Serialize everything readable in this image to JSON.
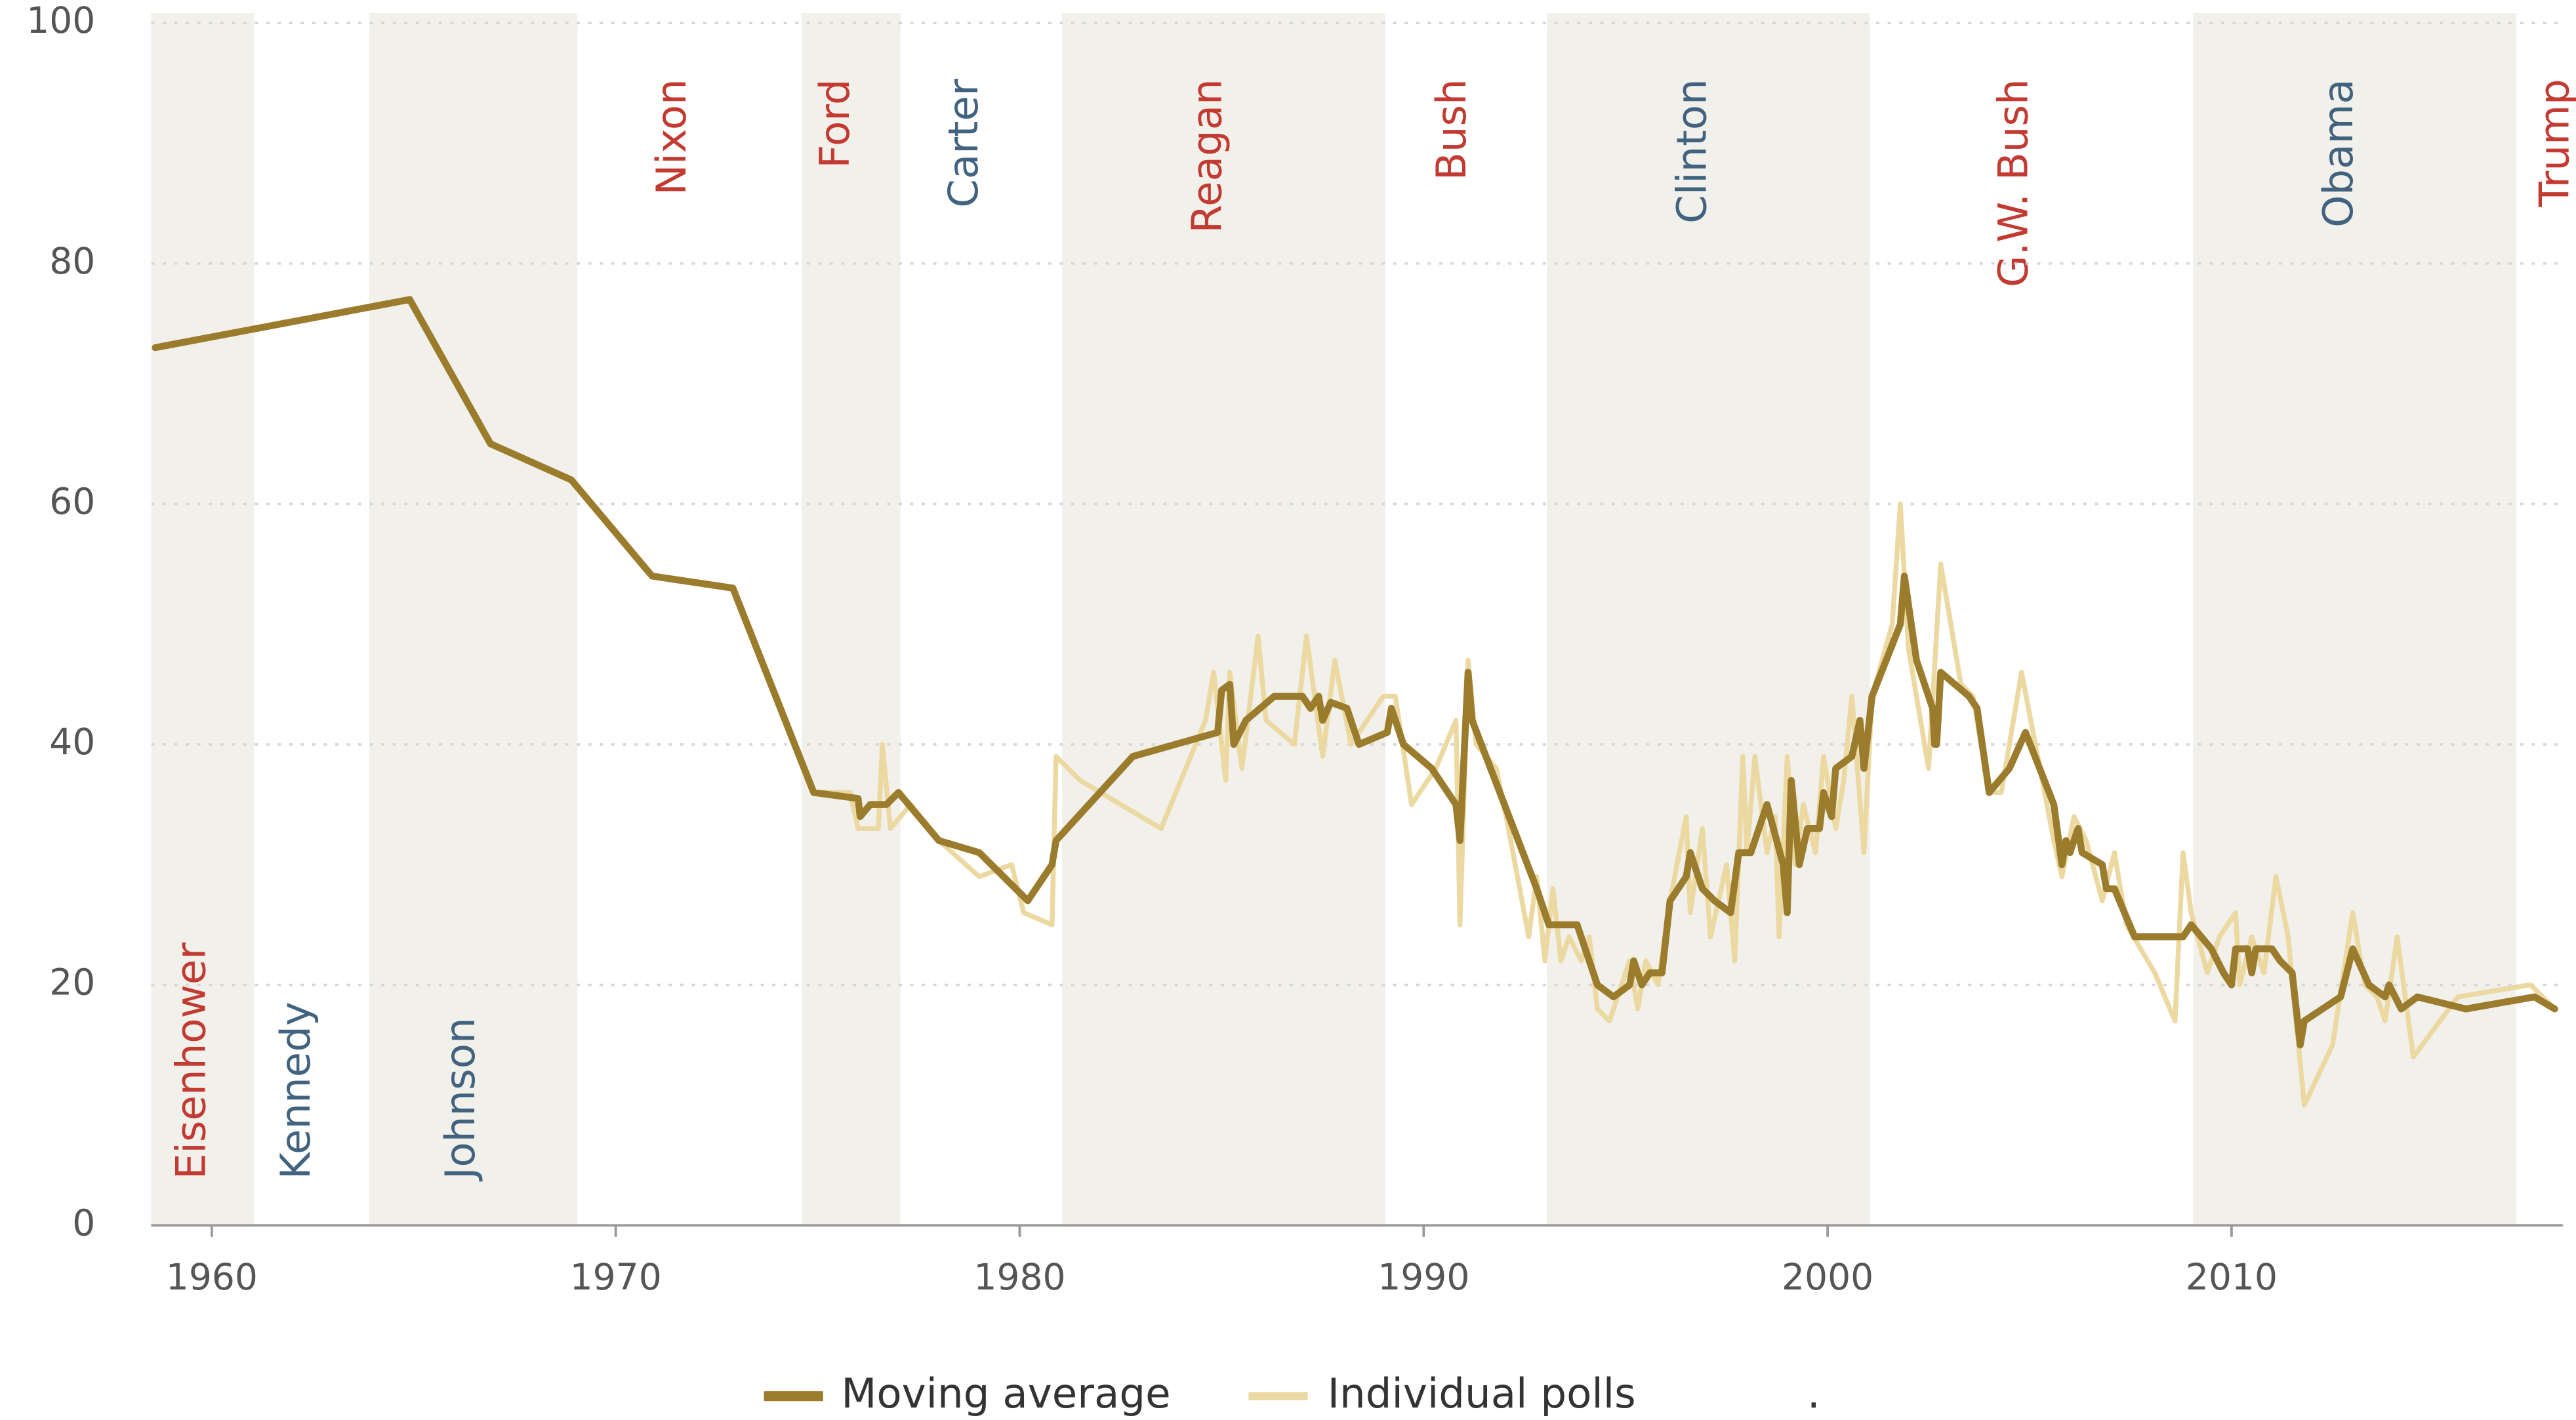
{
  "chart_data": {
    "type": "line",
    "xlim": [
      1958.5,
      2018.2
    ],
    "xticks": [
      1960,
      1970,
      1980,
      1990,
      2000,
      2010
    ],
    "ylim": [
      0,
      100
    ],
    "yticks": [
      0,
      20,
      40,
      60,
      80,
      100
    ],
    "grid": true,
    "band_color": "#f1f0ea",
    "presidents": [
      {
        "name": "Eisenhower",
        "start": 1953,
        "color": "#c23a31"
      },
      {
        "name": "Kennedy",
        "start": 1961.05,
        "color": "#41637f"
      },
      {
        "name": "Johnson",
        "start": 1963.9,
        "color": "#41637f"
      },
      {
        "name": "Nixon",
        "start": 1969.05,
        "color": "#c23a31"
      },
      {
        "name": "Ford",
        "start": 1974.6,
        "color": "#c23a31"
      },
      {
        "name": "Carter",
        "start": 1977.05,
        "color": "#41637f"
      },
      {
        "name": "Reagan",
        "start": 1981.05,
        "color": "#c23a31"
      },
      {
        "name": "Bush",
        "start": 1989.05,
        "color": "#c23a31"
      },
      {
        "name": "Clinton",
        "start": 1993.05,
        "color": "#41637f"
      },
      {
        "name": "G.W. Bush",
        "start": 2001.05,
        "color": "#c23a31"
      },
      {
        "name": "Obama",
        "start": 2009.05,
        "color": "#41637f"
      },
      {
        "name": "Trump",
        "start": 2017.05,
        "color": "#c23a31"
      }
    ],
    "series": [
      {
        "name": "Individual polls",
        "color": "#ecd9a2",
        "x": [
          1958.6,
          1964.9,
          1966.9,
          1968.9,
          1970.9,
          1972.9,
          1974.9,
          1975.8,
          1976.0,
          1976.5,
          1976.6,
          1976.8,
          1977.3,
          1978,
          1979,
          1979.8,
          1980.1,
          1980.8,
          1980.9,
          1981.5,
          1983.5,
          1984.6,
          1984.8,
          1985.1,
          1985.2,
          1985.5,
          1985.9,
          1986.1,
          1986.8,
          1987.1,
          1987.5,
          1987.8,
          1988.2,
          1989.0,
          1989.3,
          1989.7,
          1990.3,
          1990.8,
          1990.9,
          1991.1,
          1991.3,
          1991.8,
          1992.1,
          1992.6,
          1992.8,
          1993.0,
          1993.2,
          1993.4,
          1993.6,
          1993.9,
          1994.1,
          1994.3,
          1994.6,
          1995.1,
          1995.3,
          1995.5,
          1995.8,
          1996.1,
          1996.5,
          1996.6,
          1996.9,
          1997.1,
          1997.5,
          1997.7,
          1997.9,
          1998.0,
          1998.2,
          1998.5,
          1998.7,
          1998.8,
          1999.0,
          1999.2,
          1999.4,
          1999.7,
          1999.9,
          2000.2,
          2000.4,
          2000.6,
          2000.9,
          2001.1,
          2001.6,
          2001.8,
          2002.0,
          2002.5,
          2002.8,
          2003.3,
          2003.6,
          2004.0,
          2004.3,
          2004.8,
          2005.2,
          2005.6,
          2005.8,
          2006.1,
          2006.4,
          2006.8,
          2007.1,
          2007.4,
          2008.1,
          2008.6,
          2008.8,
          2009.0,
          2009.4,
          2009.7,
          2010.1,
          2010.2,
          2010.5,
          2010.8,
          2011.1,
          2011.4,
          2011.8,
          2012.5,
          2013.0,
          2013.3,
          2013.6,
          2013.8,
          2014.1,
          2014.5,
          2015.6,
          2017.4,
          2018.0
        ],
        "values": [
          73,
          77,
          65,
          62,
          54,
          53,
          36,
          36,
          33,
          33,
          40,
          33,
          35,
          32,
          29,
          30,
          26,
          25,
          39,
          37,
          33,
          42,
          46,
          37,
          46,
          38,
          49,
          42,
          40,
          49,
          39,
          47,
          40,
          44,
          44,
          35,
          38,
          42,
          25,
          47,
          40,
          38,
          33,
          24,
          29,
          22,
          28,
          22,
          24,
          22,
          24,
          18,
          17,
          22,
          18,
          22,
          20,
          27,
          34,
          26,
          33,
          24,
          30,
          22,
          39,
          31,
          39,
          31,
          34,
          24,
          39,
          30,
          35,
          31,
          39,
          33,
          37,
          44,
          31,
          44,
          50,
          60,
          48,
          38,
          55,
          45,
          44,
          36,
          36,
          46,
          39,
          32,
          29,
          34,
          32,
          27,
          31,
          25,
          21,
          17,
          31,
          26,
          21,
          24,
          26,
          20,
          24,
          21,
          29,
          24,
          10,
          15,
          26,
          20,
          19,
          17,
          24,
          14,
          19,
          20,
          18
        ]
      },
      {
        "name": "Moving average",
        "color": "#9b7b2c",
        "x": [
          1958.6,
          1964.9,
          1966.9,
          1968.9,
          1970.9,
          1972.9,
          1974.9,
          1976.0,
          1976.05,
          1976.3,
          1976.7,
          1977,
          1978,
          1979,
          1980.2,
          1980.8,
          1980.9,
          1982.8,
          1984.9,
          1985.0,
          1985.2,
          1985.3,
          1985.6,
          1986.3,
          1987,
          1987.2,
          1987.4,
          1987.5,
          1987.7,
          1988.1,
          1988.4,
          1989.1,
          1989.2,
          1989.5,
          1990.2,
          1990.8,
          1990.9,
          1991.1,
          1991.2,
          1992,
          1992.8,
          1993.1,
          1993.8,
          1994.3,
          1994.7,
          1995.1,
          1995.2,
          1995.4,
          1995.6,
          1995.9,
          1996.1,
          1996.5,
          1996.6,
          1996.9,
          1997.2,
          1997.6,
          1997.8,
          1998.1,
          1998.2,
          1998.5,
          1998.9,
          1999.0,
          1999.1,
          1999.3,
          1999.5,
          1999.8,
          1999.9,
          2000.1,
          2000.2,
          2000.6,
          2000.8,
          2000.9,
          2001.1,
          2001.8,
          2001.9,
          2002.2,
          2002.6,
          2002.65,
          2002.7,
          2002.8,
          2003.5,
          2003.7,
          2004.0,
          2004.5,
          2004.9,
          2005.6,
          2005.8,
          2005.9,
          2006.0,
          2006.2,
          2006.3,
          2006.8,
          2006.9,
          2007.1,
          2007.6,
          2008.8,
          2009.0,
          2009.5,
          2009.8,
          2010.0,
          2010.1,
          2010.4,
          2010.5,
          2010.6,
          2011.0,
          2011.2,
          2011.5,
          2011.7,
          2011.8,
          2012.7,
          2013.0,
          2013.4,
          2013.8,
          2013.9,
          2014.2,
          2014.6,
          2015.8,
          2017.5,
          2018.0
        ],
        "values": [
          73,
          77,
          65,
          62,
          54,
          53,
          36,
          35.5,
          34,
          35,
          35,
          36,
          32,
          31,
          27,
          30,
          32,
          39,
          41,
          44.5,
          45,
          40,
          42,
          44,
          44,
          43,
          44,
          42,
          43.5,
          43,
          40,
          41,
          43,
          40,
          38,
          35,
          32,
          46,
          42,
          35,
          28,
          25,
          25,
          20,
          19,
          20,
          22,
          20,
          21,
          21,
          27,
          29,
          31,
          28,
          27,
          26,
          31,
          31,
          32,
          35,
          30,
          26,
          37,
          30,
          33,
          33,
          36,
          34,
          38,
          39,
          42,
          38,
          44,
          50,
          54,
          47,
          43,
          40,
          40,
          46,
          44,
          43,
          36,
          38,
          41,
          35,
          30,
          32,
          31,
          33,
          31,
          30,
          28,
          28,
          24,
          24,
          25,
          23,
          21,
          20,
          23,
          23,
          21,
          23,
          23,
          22,
          21,
          15,
          17,
          19,
          23,
          20,
          19,
          20,
          18,
          19,
          18,
          19,
          18
        ]
      }
    ],
    "legend_note": "."
  }
}
